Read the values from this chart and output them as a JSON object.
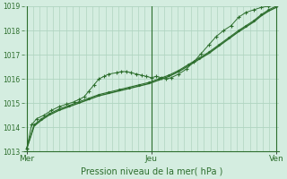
{
  "xlabel": "Pression niveau de la mer( hPa )",
  "bg_color": "#d4ede0",
  "grid_color": "#b0d4c0",
  "line_color": "#2d6e2d",
  "text_color": "#2d6e2d",
  "ylim": [
    1013,
    1019
  ],
  "yticks": [
    1013,
    1014,
    1015,
    1016,
    1017,
    1018,
    1019
  ],
  "xtick_labels": [
    "Mer",
    "Jeu",
    "Ven"
  ],
  "xtick_positions": [
    0.0,
    0.5,
    1.0
  ],
  "num_vgrid": 38,
  "series1_x": [
    0.0,
    0.02,
    0.04,
    0.07,
    0.1,
    0.13,
    0.16,
    0.19,
    0.21,
    0.23,
    0.25,
    0.27,
    0.29,
    0.31,
    0.33,
    0.36,
    0.38,
    0.4,
    0.42,
    0.44,
    0.46,
    0.48,
    0.5,
    0.52,
    0.54,
    0.56,
    0.58,
    0.61,
    0.64,
    0.67,
    0.7,
    0.73,
    0.76,
    0.79,
    0.82,
    0.85,
    0.88,
    0.91,
    0.94,
    0.97,
    1.0
  ],
  "series1_y": [
    1013.1,
    1014.1,
    1014.35,
    1014.5,
    1014.7,
    1014.85,
    1014.95,
    1015.05,
    1015.15,
    1015.25,
    1015.5,
    1015.75,
    1016.0,
    1016.1,
    1016.2,
    1016.25,
    1016.3,
    1016.3,
    1016.25,
    1016.2,
    1016.15,
    1016.1,
    1016.05,
    1016.1,
    1016.05,
    1016.0,
    1016.05,
    1016.2,
    1016.4,
    1016.7,
    1017.05,
    1017.4,
    1017.75,
    1018.0,
    1018.2,
    1018.55,
    1018.75,
    1018.85,
    1018.95,
    1019.0,
    1019.05
  ],
  "series2_x": [
    0.0,
    0.03,
    0.06,
    0.09,
    0.13,
    0.17,
    0.21,
    0.25,
    0.29,
    0.33,
    0.37,
    0.41,
    0.45,
    0.49,
    0.53,
    0.57,
    0.61,
    0.65,
    0.69,
    0.73,
    0.77,
    0.81,
    0.85,
    0.88,
    0.91,
    0.94,
    0.97,
    1.0
  ],
  "series2_y": [
    1013.1,
    1014.1,
    1014.35,
    1014.55,
    1014.75,
    1014.9,
    1015.05,
    1015.2,
    1015.35,
    1015.45,
    1015.55,
    1015.65,
    1015.75,
    1015.85,
    1016.0,
    1016.15,
    1016.35,
    1016.6,
    1016.85,
    1017.1,
    1017.4,
    1017.7,
    1018.0,
    1018.2,
    1018.4,
    1018.65,
    1018.85,
    1019.0
  ],
  "series3_x": [
    0.0,
    0.03,
    0.06,
    0.09,
    0.13,
    0.17,
    0.21,
    0.25,
    0.29,
    0.33,
    0.37,
    0.41,
    0.45,
    0.49,
    0.53,
    0.57,
    0.61,
    0.65,
    0.69,
    0.73,
    0.77,
    0.81,
    0.85,
    0.88,
    0.91,
    0.94,
    0.97,
    1.0
  ],
  "series3_y": [
    1013.1,
    1014.05,
    1014.3,
    1014.5,
    1014.7,
    1014.85,
    1015.0,
    1015.15,
    1015.3,
    1015.4,
    1015.5,
    1015.6,
    1015.7,
    1015.8,
    1015.95,
    1016.1,
    1016.3,
    1016.55,
    1016.8,
    1017.05,
    1017.35,
    1017.65,
    1017.95,
    1018.15,
    1018.35,
    1018.6,
    1018.8,
    1018.95
  ]
}
